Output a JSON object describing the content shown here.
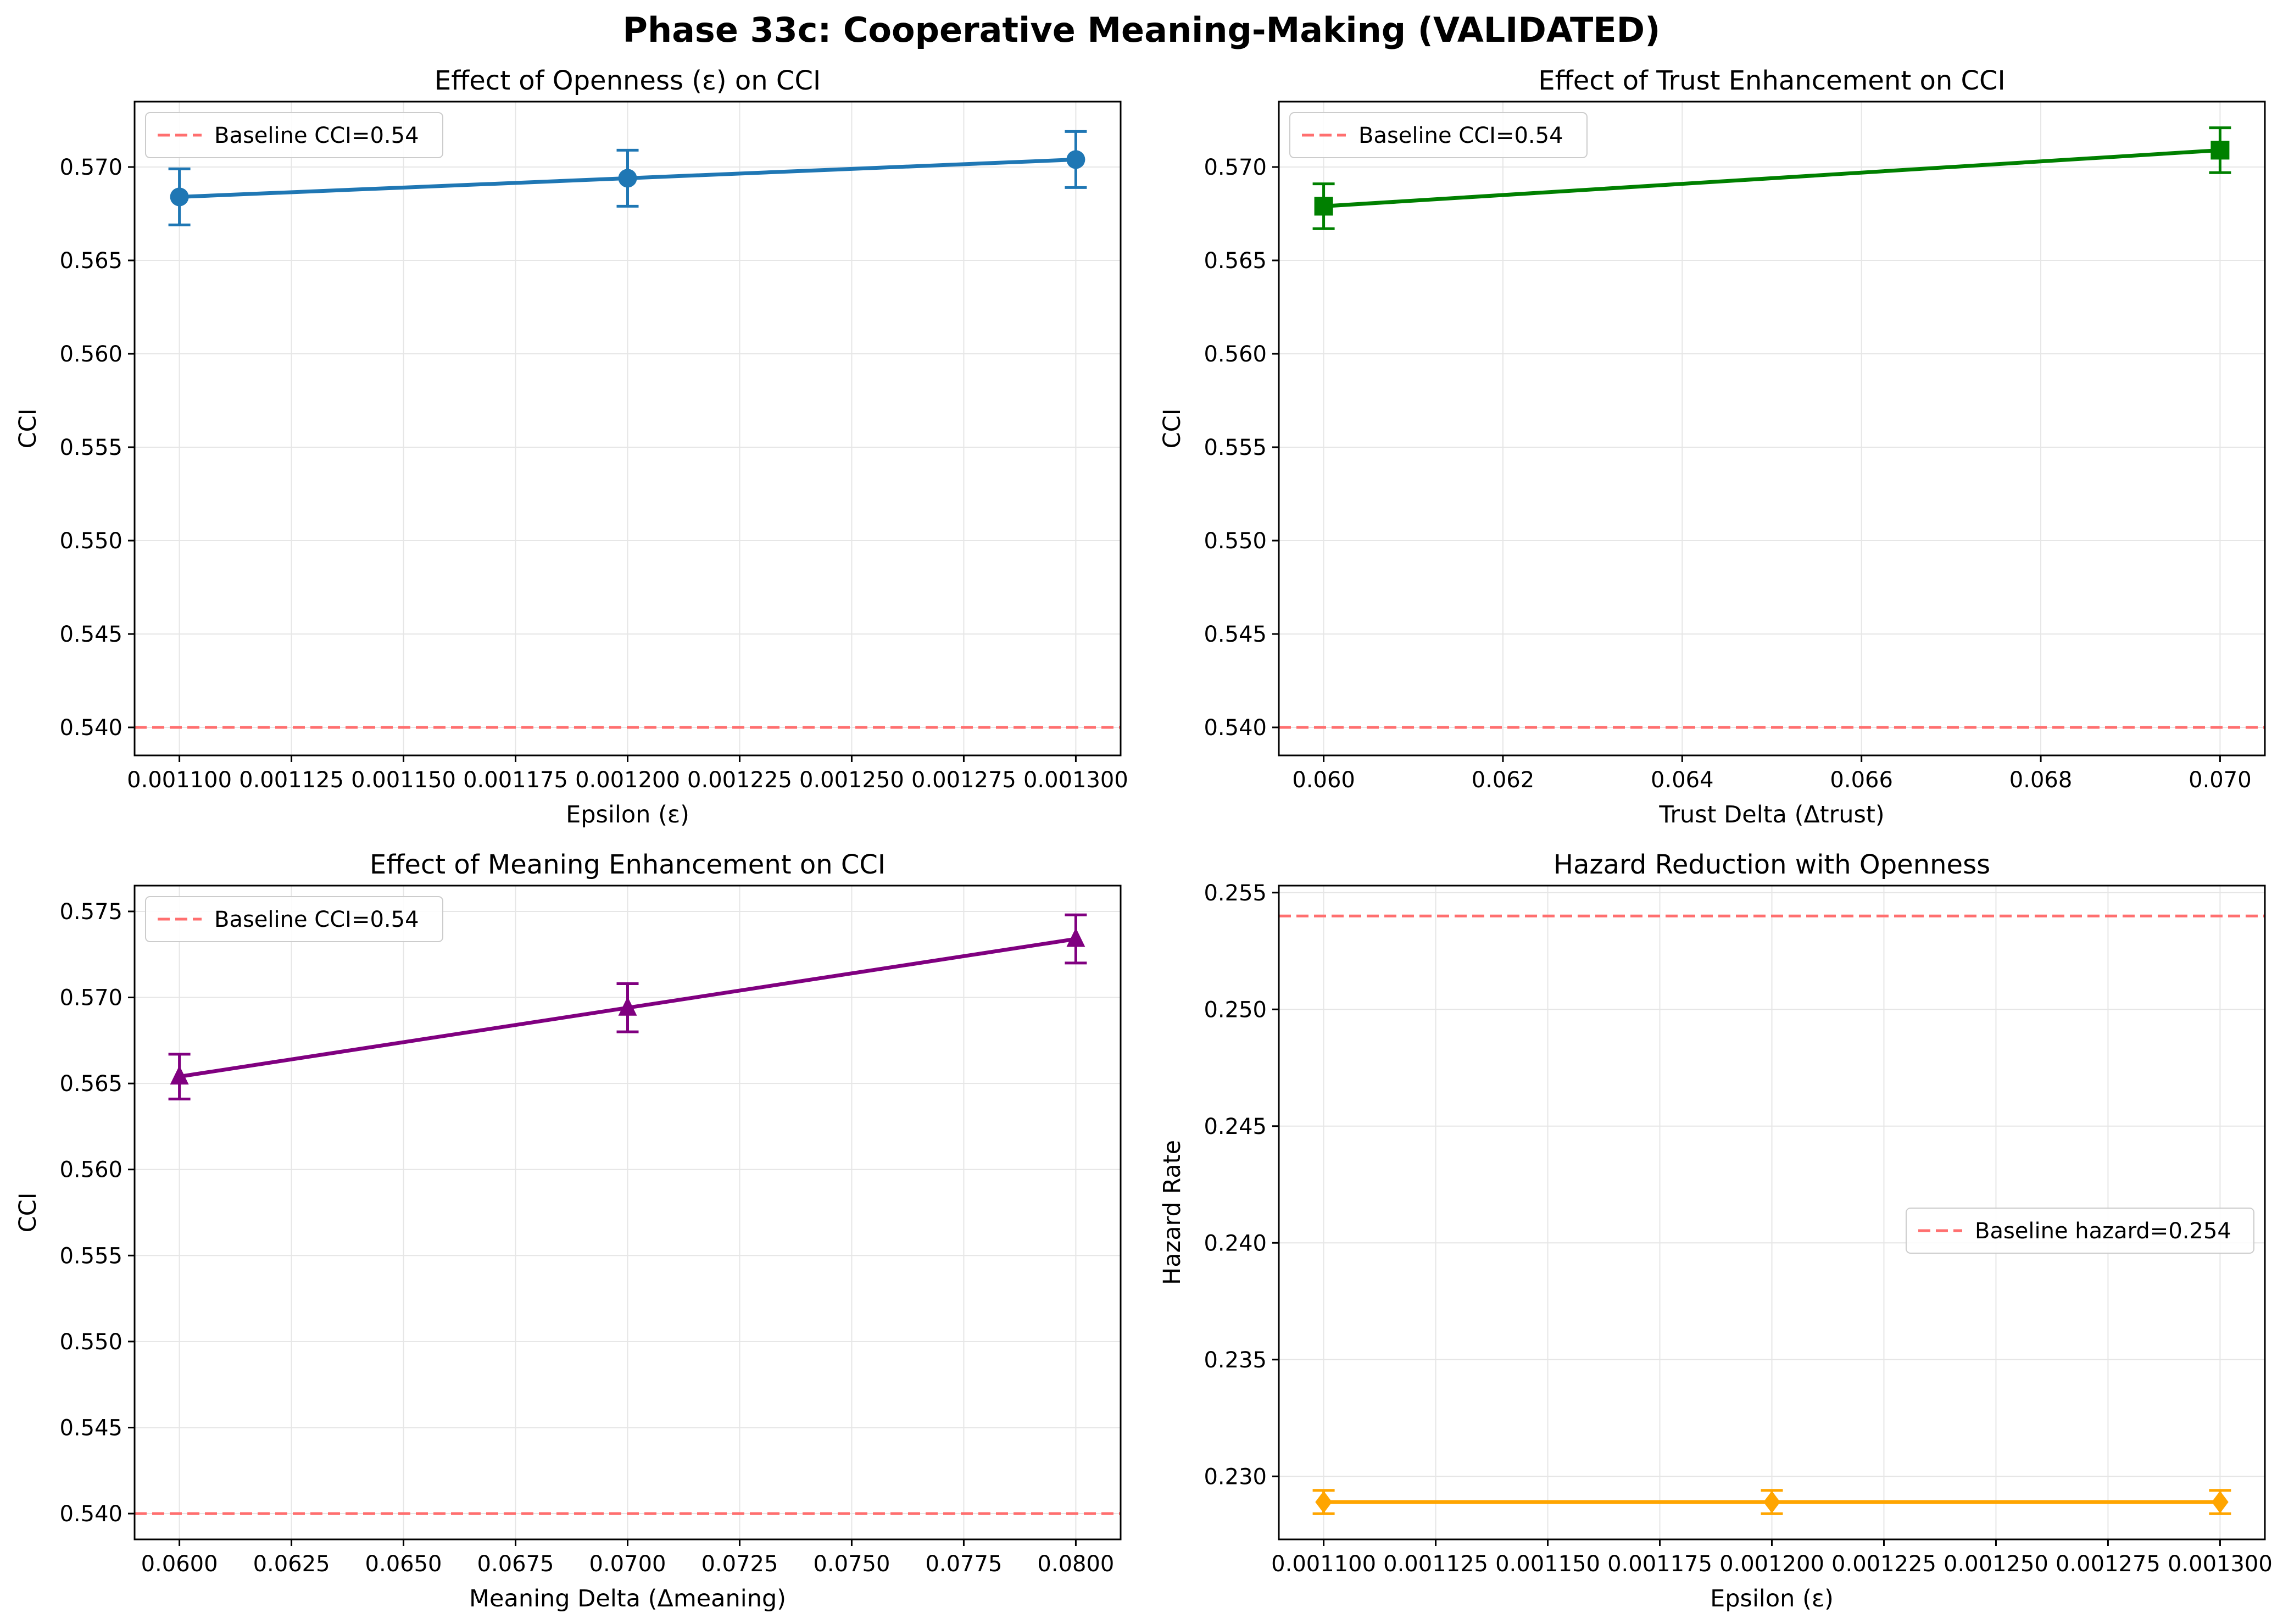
{
  "figure": {
    "suptitle": "Phase 33c: Cooperative Meaning-Making (VALIDATED)"
  },
  "colors": {
    "baseline": "#ff6f6f",
    "grid": "#e6e6e6",
    "openness": "#1f77b4",
    "trust": "#008000",
    "meaning": "#800080",
    "hazard": "#ffa500"
  },
  "chart_data": [
    {
      "id": "openness",
      "type": "line",
      "title": "Effect of Openness (ε) on CCI",
      "xlabel": "Epsilon (ε)",
      "ylabel": "CCI",
      "marker": "circle",
      "color_key": "openness",
      "xlim": [
        0.00109,
        0.00131
      ],
      "ylim": [
        0.5385,
        0.5735
      ],
      "xticks": [
        0.0011,
        0.001125,
        0.00115,
        0.001175,
        0.0012,
        0.001225,
        0.00125,
        0.001275,
        0.0013
      ],
      "xtick_labels": [
        "0.001100",
        "0.001125",
        "0.001150",
        "0.001175",
        "0.001200",
        "0.001225",
        "0.001250",
        "0.001275",
        "0.001300"
      ],
      "yticks": [
        0.54,
        0.545,
        0.55,
        0.555,
        0.56,
        0.565,
        0.57
      ],
      "ytick_labels": [
        "0.540",
        "0.545",
        "0.550",
        "0.555",
        "0.560",
        "0.565",
        "0.570"
      ],
      "x": [
        0.0011,
        0.0012,
        0.0013
      ],
      "y": [
        0.5684,
        0.5694,
        0.5704
      ],
      "yerr": [
        0.0015,
        0.0015,
        0.0015
      ],
      "baseline": 0.54,
      "legend": "Baseline CCI=0.54",
      "legend_loc": "upper-left",
      "grid": true
    },
    {
      "id": "trust",
      "type": "line",
      "title": "Effect of Trust Enhancement on CCI",
      "xlabel": "Trust Delta (Δtrust)",
      "ylabel": "CCI",
      "marker": "square",
      "color_key": "trust",
      "xlim": [
        0.0595,
        0.0705
      ],
      "ylim": [
        0.5385,
        0.5735
      ],
      "xticks": [
        0.06,
        0.062,
        0.064,
        0.066,
        0.068,
        0.07
      ],
      "xtick_labels": [
        "0.060",
        "0.062",
        "0.064",
        "0.066",
        "0.068",
        "0.070"
      ],
      "yticks": [
        0.54,
        0.545,
        0.55,
        0.555,
        0.56,
        0.565,
        0.57
      ],
      "ytick_labels": [
        "0.540",
        "0.545",
        "0.550",
        "0.555",
        "0.560",
        "0.565",
        "0.570"
      ],
      "x": [
        0.06,
        0.07
      ],
      "y": [
        0.5679,
        0.5709
      ],
      "yerr": [
        0.0012,
        0.0012
      ],
      "baseline": 0.54,
      "legend": "Baseline CCI=0.54",
      "legend_loc": "upper-left",
      "grid": true
    },
    {
      "id": "meaning",
      "type": "line",
      "title": "Effect of Meaning Enhancement on CCI",
      "xlabel": "Meaning Delta (Δmeaning)",
      "ylabel": "CCI",
      "marker": "triangle",
      "color_key": "meaning",
      "xlim": [
        0.059,
        0.081
      ],
      "ylim": [
        0.5385,
        0.5765
      ],
      "xticks": [
        0.06,
        0.0625,
        0.065,
        0.0675,
        0.07,
        0.0725,
        0.075,
        0.0775,
        0.08
      ],
      "xtick_labels": [
        "0.0600",
        "0.0625",
        "0.0650",
        "0.0675",
        "0.0700",
        "0.0725",
        "0.0750",
        "0.0775",
        "0.0800"
      ],
      "yticks": [
        0.54,
        0.545,
        0.55,
        0.555,
        0.56,
        0.565,
        0.57,
        0.575
      ],
      "ytick_labels": [
        "0.540",
        "0.545",
        "0.550",
        "0.555",
        "0.560",
        "0.565",
        "0.570",
        "0.575"
      ],
      "x": [
        0.06,
        0.07,
        0.08
      ],
      "y": [
        0.5654,
        0.5694,
        0.5734
      ],
      "yerr": [
        0.0013,
        0.0014,
        0.0014
      ],
      "baseline": 0.54,
      "legend": "Baseline CCI=0.54",
      "legend_loc": "upper-left",
      "grid": true
    },
    {
      "id": "hazard",
      "type": "line",
      "title": "Hazard Reduction with Openness",
      "xlabel": "Epsilon (ε)",
      "ylabel": "Hazard Rate",
      "marker": "diamond",
      "color_key": "hazard",
      "xlim": [
        0.00109,
        0.00131
      ],
      "ylim": [
        0.2273,
        0.2553
      ],
      "xticks": [
        0.0011,
        0.001125,
        0.00115,
        0.001175,
        0.0012,
        0.001225,
        0.00125,
        0.001275,
        0.0013
      ],
      "xtick_labels": [
        "0.001100",
        "0.001125",
        "0.001150",
        "0.001175",
        "0.001200",
        "0.001225",
        "0.001250",
        "0.001275",
        "0.001300"
      ],
      "yticks": [
        0.23,
        0.235,
        0.24,
        0.245,
        0.25,
        0.255
      ],
      "ytick_labels": [
        "0.230",
        "0.235",
        "0.240",
        "0.245",
        "0.250",
        "0.255"
      ],
      "x": [
        0.0011,
        0.0012,
        0.0013
      ],
      "y": [
        0.2289,
        0.2289,
        0.2289
      ],
      "yerr": [
        0.0005,
        0.0005,
        0.0005
      ],
      "baseline": 0.254,
      "legend": "Baseline hazard=0.254",
      "legend_loc": "center-right",
      "grid": true
    }
  ]
}
